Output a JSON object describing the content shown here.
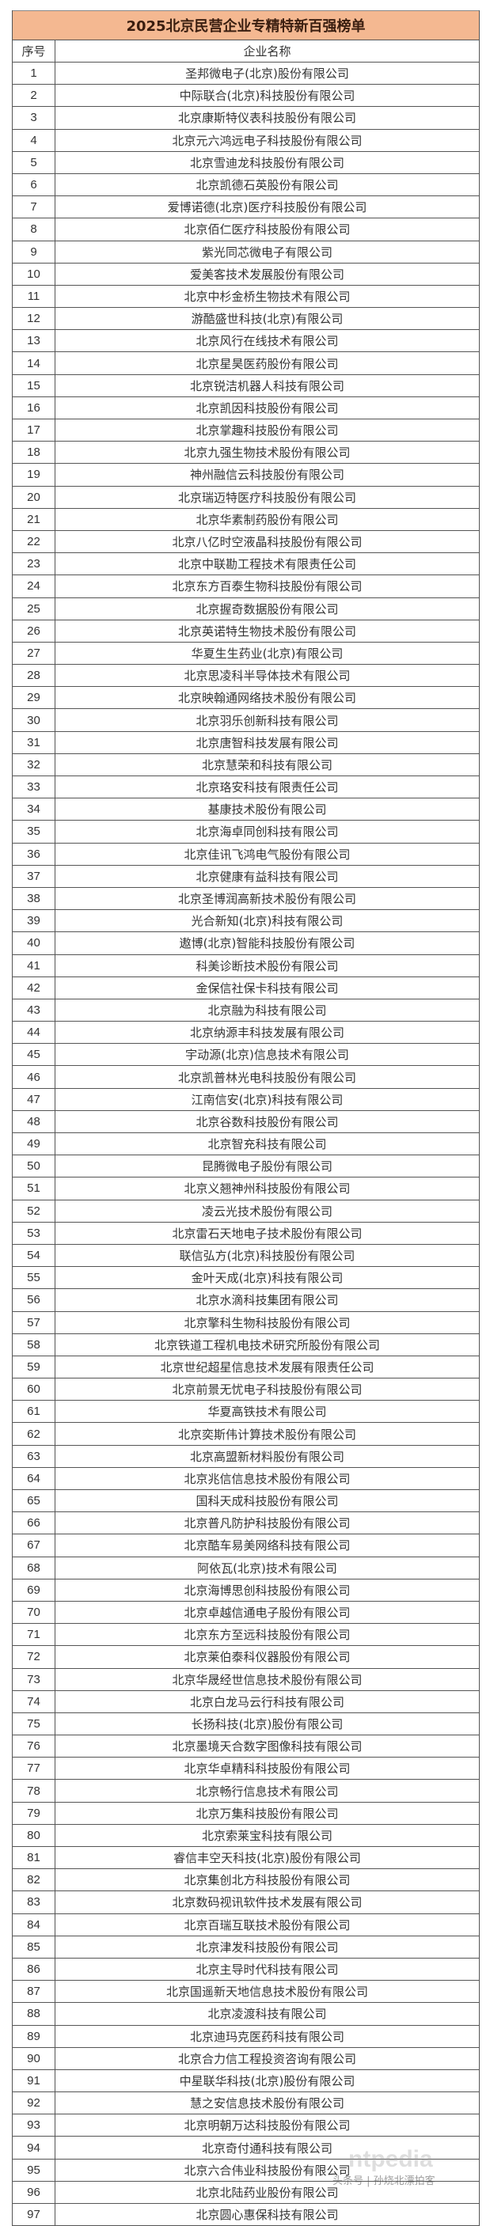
{
  "title": "2025北京民营企业专精特新百强榜单",
  "columns": {
    "no": "序号",
    "name": "企业名称"
  },
  "rows": [
    "圣邦微电子(北京)股份有限公司",
    "中际联合(北京)科技股份有限公司",
    "北京康斯特仪表科技股份有限公司",
    "北京元六鸿远电子科技股份有限公司",
    "北京雪迪龙科技股份有限公司",
    "北京凯德石英股份有限公司",
    "爱博诺德(北京)医疗科技股份有限公司",
    "北京佰仁医疗科技股份有限公司",
    "紫光同芯微电子有限公司",
    "爱美客技术发展股份有限公司",
    "北京中杉金桥生物技术有限公司",
    "游酷盛世科技(北京)有限公司",
    "北京风行在线技术有限公司",
    "北京星昊医药股份有限公司",
    "北京锐洁机器人科技有限公司",
    "北京凯因科技股份有限公司",
    "北京掌趣科技股份有限公司",
    "北京九强生物技术股份有限公司",
    "神州融信云科技股份有限公司",
    "北京瑞迈特医疗科技股份有限公司",
    "北京华素制药股份有限公司",
    "北京八亿时空液晶科技股份有限公司",
    "北京中联勘工程技术有限责任公司",
    "北京东方百泰生物科技股份有限公司",
    "北京握奇数据股份有限公司",
    "北京英诺特生物技术股份有限公司",
    "华夏生生药业(北京)有限公司",
    "北京思凌科半导体技术有限公司",
    "北京映翰通网络技术股份有限公司",
    "北京羽乐创新科技有限公司",
    "北京唐智科技发展有限公司",
    "北京慧荣和科技有限公司",
    "北京珞安科技有限责任公司",
    "基康技术股份有限公司",
    "北京海卓同创科技有限公司",
    "北京佳讯飞鸿电气股份有限公司",
    "北京健康有益科技有限公司",
    "北京圣博润高新技术股份有限公司",
    "光合新知(北京)科技有限公司",
    "遨博(北京)智能科技股份有限公司",
    "科美诊断技术股份有限公司",
    "金保信社保卡科技有限公司",
    "北京融为科技有限公司",
    "北京纳源丰科技发展有限公司",
    "宇动源(北京)信息技术有限公司",
    "北京凯普林光电科技股份有限公司",
    "江南信安(北京)科技有限公司",
    "北京谷数科技股份有限公司",
    "北京智充科技有限公司",
    "昆腾微电子股份有限公司",
    "北京义翘神州科技股份有限公司",
    "凌云光技术股份有限公司",
    "北京雷石天地电子技术股份有限公司",
    "联信弘方(北京)科技股份有限公司",
    "金叶天成(北京)科技有限公司",
    "北京水滴科技集团有限公司",
    "北京擎科生物科技股份有限公司",
    "北京铁道工程机电技术研究所股份有限公司",
    "北京世纪超星信息技术发展有限责任公司",
    "北京前景无忧电子科技股份有限公司",
    "华夏高铁技术有限公司",
    "北京奕斯伟计算技术股份有限公司",
    "北京高盟新材料股份有限公司",
    "北京兆信信息技术股份有限公司",
    "国科天成科技股份有限公司",
    "北京普凡防护科技股份有限公司",
    "北京酷车易美网络科技有限公司",
    "阿依瓦(北京)技术有限公司",
    "北京海博思创科技股份有限公司",
    "北京卓越信通电子股份有限公司",
    "北京东方至远科技股份有限公司",
    "北京莱伯泰科仪器股份有限公司",
    "北京华晟经世信息技术股份有限公司",
    "北京白龙马云行科技有限公司",
    "长扬科技(北京)股份有限公司",
    "北京墨境天合数字图像科技有限公司",
    "北京华卓精科科技股份有限公司",
    "北京畅行信息技术有限公司",
    "北京万集科技股份有限公司",
    "北京索莱宝科技有限公司",
    "睿信丰空天科技(北京)股份有限公司",
    "北京集创北方科技股份有限公司",
    "北京数码视讯软件技术发展有限公司",
    "北京百瑞互联技术股份有限公司",
    "北京津发科技股份有限公司",
    "北京主导时代科技有限公司",
    "北京国遥新天地信息技术股份有限公司",
    "北京凌渡科技有限公司",
    "北京迪玛克医药科技有限公司",
    "北京合力信工程投资咨询有限公司",
    "中星联华科技(北京)股份有限公司",
    "慧之安信息技术股份有限公司",
    "北京明朝万达科技股份有限公司",
    "北京奇付通科技有限公司",
    "北京六合伟业科技股份有限公司",
    "北京北陆药业股份有限公司",
    "北京圆心惠保科技有限公司"
  ],
  "watermark": {
    "logo": "ntpedia",
    "source": "头条号 | 孙烧北漂拍客"
  },
  "colors": {
    "title_bg": "#f4b891",
    "border": "#555555"
  }
}
